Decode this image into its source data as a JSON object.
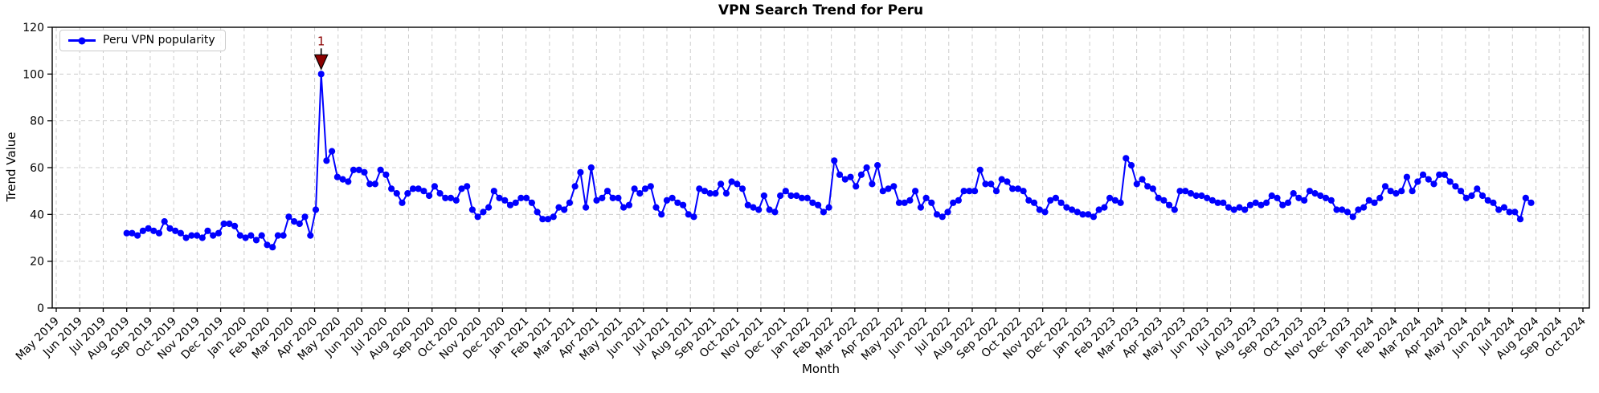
{
  "chart_data": {
    "type": "line",
    "title": "VPN Search Trend for Peru",
    "xlabel": "Month",
    "ylabel": "Trend Value",
    "ylim": [
      0,
      120
    ],
    "y_ticks": [
      0,
      20,
      40,
      60,
      80,
      100,
      120
    ],
    "grid": true,
    "legend": [
      "Peru VPN popularity"
    ],
    "legend_position": "upper left",
    "colors": {
      "line": "#0000ff",
      "marker": "#0000ff",
      "annotation": "#8b0000",
      "grid": "#cccccc",
      "axis": "#000000"
    },
    "x_tick_labels": [
      "May 2019",
      "Jun 2019",
      "Jul 2019",
      "Aug 2019",
      "Sep 2019",
      "Oct 2019",
      "Nov 2019",
      "Dec 2019",
      "Jan 2020",
      "Feb 2020",
      "Mar 2020",
      "Apr 2020",
      "May 2020",
      "Jun 2020",
      "Jul 2020",
      "Aug 2020",
      "Sep 2020",
      "Oct 2020",
      "Nov 2020",
      "Dec 2020",
      "Jan 2021",
      "Feb 2021",
      "Mar 2021",
      "Apr 2021",
      "May 2021",
      "Jun 2021",
      "Jul 2021",
      "Aug 2021",
      "Sep 2021",
      "Oct 2021",
      "Nov 2021",
      "Dec 2021",
      "Jan 2022",
      "Feb 2022",
      "Mar 2022",
      "Apr 2022",
      "May 2022",
      "Jun 2022",
      "Jul 2022",
      "Aug 2022",
      "Sep 2022",
      "Oct 2022",
      "Nov 2022",
      "Dec 2022",
      "Jan 2023",
      "Feb 2023",
      "Mar 2023",
      "Apr 2023",
      "May 2023",
      "Jun 2023",
      "Jul 2023",
      "Aug 2023",
      "Sep 2023",
      "Oct 2023",
      "Nov 2023",
      "Dec 2023",
      "Jan 2024",
      "Feb 2024",
      "Mar 2024",
      "Apr 2024",
      "May 2024",
      "Jun 2024",
      "Jul 2024",
      "Aug 2024",
      "Sep 2024",
      "Oct 2024"
    ],
    "series": [
      {
        "name": "Peru VPN popularity",
        "color": "#0000ff",
        "marker": "circle",
        "sampling": "weekly",
        "x_start_month_index": 3,
        "values": [
          32,
          32,
          31,
          33,
          34,
          33,
          32,
          37,
          34,
          33,
          32,
          30,
          31,
          31,
          30,
          33,
          31,
          32,
          36,
          36,
          35,
          31,
          30,
          31,
          29,
          31,
          27,
          26,
          31,
          31,
          39,
          37,
          36,
          39,
          31,
          42,
          100,
          63,
          67,
          56,
          55,
          54,
          59,
          59,
          58,
          53,
          53,
          59,
          57,
          51,
          49,
          45,
          49,
          51,
          51,
          50,
          48,
          52,
          49,
          47,
          47,
          46,
          51,
          52,
          42,
          39,
          41,
          43,
          50,
          47,
          46,
          44,
          45,
          47,
          47,
          45,
          41,
          38,
          38,
          39,
          43,
          42,
          45,
          52,
          58,
          43,
          60,
          46,
          47,
          50,
          47,
          47,
          43,
          44,
          51,
          49,
          51,
          52,
          43,
          40,
          46,
          47,
          45,
          44,
          40,
          39,
          51,
          50,
          49,
          49,
          53,
          49,
          54,
          53,
          51,
          44,
          43,
          42,
          48,
          42,
          41,
          48,
          50,
          48,
          48,
          47,
          47,
          45,
          44,
          41,
          43,
          63,
          57,
          55,
          56,
          52,
          57,
          60,
          53,
          61,
          50,
          51,
          52,
          45,
          45,
          46,
          50,
          43,
          47,
          45,
          40,
          39,
          41,
          45,
          46,
          50,
          50,
          50,
          59,
          53,
          53,
          50,
          55,
          54,
          51,
          51,
          50,
          46,
          45,
          42,
          41,
          46,
          47,
          45,
          43,
          42,
          41,
          40,
          40,
          39,
          42,
          43,
          47,
          46,
          45,
          64,
          61,
          53,
          55,
          52,
          51,
          47,
          46,
          44,
          42,
          50,
          50,
          49,
          48,
          48,
          47,
          46,
          45,
          45,
          43,
          42,
          43,
          42,
          44,
          45,
          44,
          45,
          48,
          47,
          44,
          45,
          49,
          47,
          46,
          50,
          49,
          48,
          47,
          46,
          42,
          42,
          41,
          39,
          42,
          43,
          46,
          45,
          47,
          52,
          50,
          49,
          50,
          56,
          50,
          54,
          57,
          55,
          53,
          57,
          57,
          54,
          52,
          50,
          47,
          48,
          51,
          48,
          46,
          45,
          42,
          43,
          41,
          41,
          38,
          47,
          45
        ]
      }
    ],
    "annotation": {
      "label": "1",
      "series_point_index": 36,
      "value": 100,
      "color": "#8b0000"
    }
  }
}
